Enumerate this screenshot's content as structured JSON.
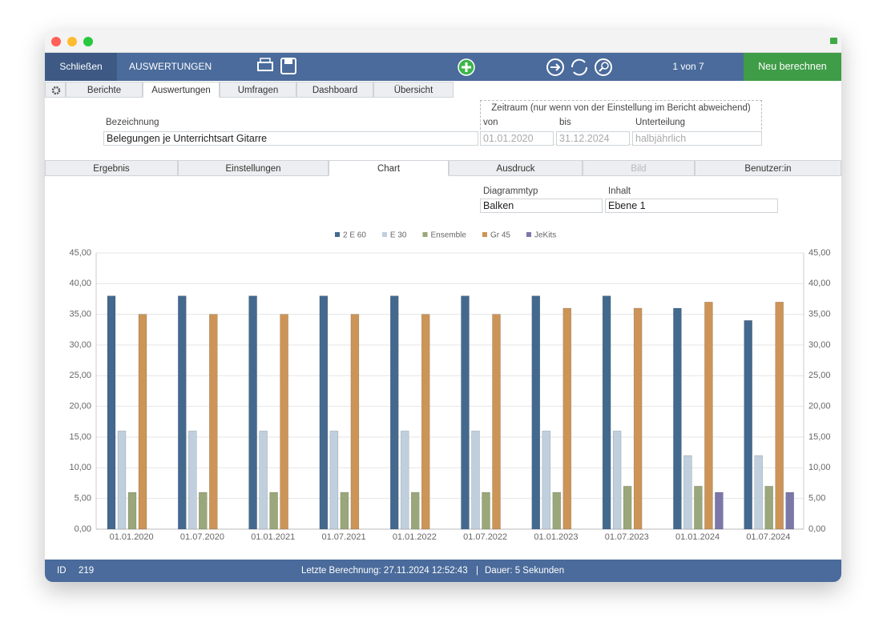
{
  "window": {
    "toolbar": {
      "close": "Schließen",
      "title": "AUSWERTUNGEN",
      "record": "1 von 7",
      "recalc": "Neu berechnen"
    },
    "tabs": [
      "Berichte",
      "Auswertungen",
      "Umfragen",
      "Dashboard",
      "Übersicht"
    ],
    "form": {
      "name_label": "Bezeichnung",
      "name_value": "Belegungen je Unterrichtsart Gitarre",
      "period_title": "Zeitraum (nur wenn von der Einstellung im Bericht abweichend)",
      "from_label": "von",
      "from_value": "01.01.2020",
      "to_label": "bis",
      "to_value": "31.12.2024",
      "division_label": "Unterteilung",
      "division_value": "halbjährlich"
    },
    "subtabs": [
      "Ergebnis",
      "Einstellungen",
      "Chart",
      "Ausdruck",
      "Bild",
      "Benutzer:in"
    ],
    "chart_settings": {
      "type_label": "Diagrammtyp",
      "type_value": "Balken",
      "content_label": "Inhalt",
      "content_value": "Ebene 1"
    },
    "status": {
      "id_label": "ID",
      "id_value": 219,
      "last_calc": "Letzte Berechnung: 27.11.2024 12:52:43",
      "separator": "|",
      "duration": "Dauer: 5 Sekunden"
    }
  },
  "chart_data": {
    "type": "bar",
    "categories": [
      "01.01.2020",
      "01.07.2020",
      "01.01.2021",
      "01.07.2021",
      "01.01.2022",
      "01.07.2022",
      "01.01.2023",
      "01.07.2023",
      "01.01.2024",
      "01.07.2024"
    ],
    "series": [
      {
        "name": "2 E 60",
        "color": "#44698f",
        "values": [
          38,
          38,
          38,
          38,
          38,
          38,
          38,
          38,
          36,
          34
        ]
      },
      {
        "name": "E 30",
        "color": "#c0cfdd",
        "values": [
          16,
          16,
          16,
          16,
          16,
          16,
          16,
          16,
          12,
          12
        ]
      },
      {
        "name": "Ensemble",
        "color": "#9aa77a",
        "values": [
          6,
          6,
          6,
          6,
          6,
          6,
          6,
          7,
          7,
          7
        ]
      },
      {
        "name": "Gr 45",
        "color": "#cc9457",
        "values": [
          35,
          35,
          35,
          35,
          35,
          35,
          36,
          36,
          37,
          37
        ]
      },
      {
        "name": "JeKits",
        "color": "#7b77a8",
        "values": [
          0,
          0,
          0,
          0,
          0,
          0,
          0,
          0,
          6,
          6
        ]
      }
    ],
    "ylim": [
      0,
      45
    ],
    "yticks": [
      {
        "value": 0,
        "label": "0,00"
      },
      {
        "value": 5,
        "label": "5,00"
      },
      {
        "value": 10,
        "label": "10,00"
      },
      {
        "value": 15,
        "label": "15,00"
      },
      {
        "value": 20,
        "label": "20,00"
      },
      {
        "value": 25,
        "label": "25,00"
      },
      {
        "value": 30,
        "label": "30,00"
      },
      {
        "value": 35,
        "label": "35,00"
      },
      {
        "value": 40,
        "label": "40,00"
      },
      {
        "value": 45,
        "label": "45,00"
      }
    ],
    "grid": true,
    "legend": "top"
  }
}
